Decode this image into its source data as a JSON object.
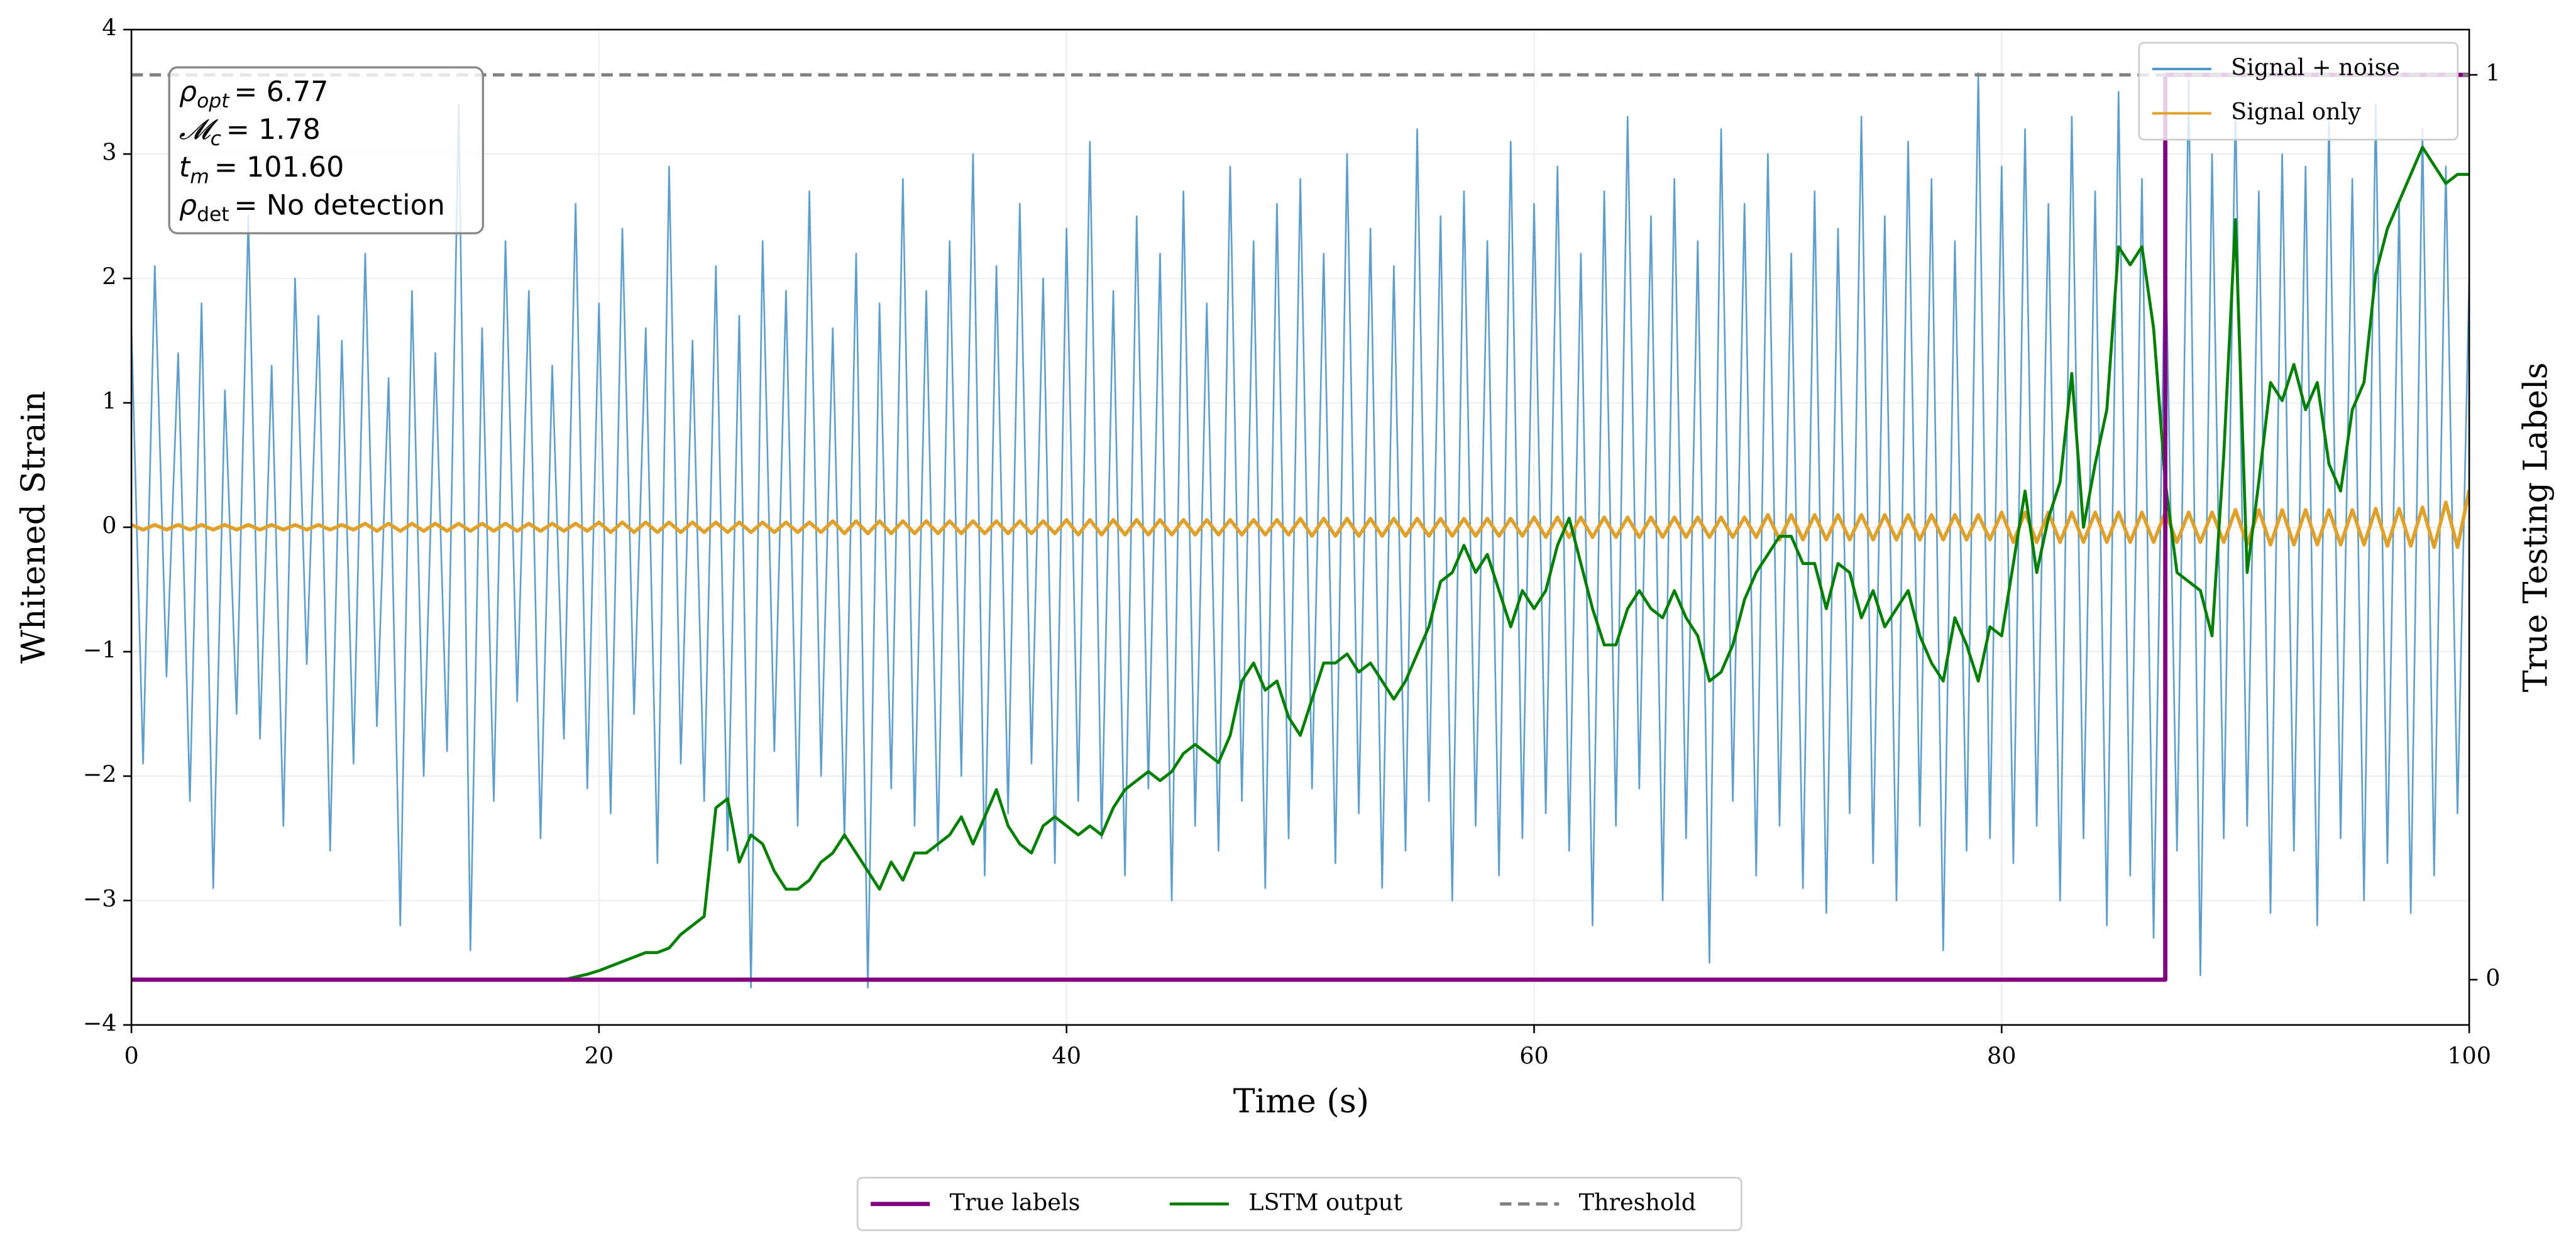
{
  "chart_data": {
    "type": "line",
    "xlabel": "Time (s)",
    "ylabel": "Whitened Strain",
    "y2label": "True Testing Labels",
    "xlim": [
      0,
      100
    ],
    "xticks": [
      0,
      20,
      40,
      60,
      80,
      100
    ],
    "ylim": [
      -4,
      4
    ],
    "yticks": [
      {
        "value": -4,
        "label": "−4"
      },
      {
        "value": -3,
        "label": "−3"
      },
      {
        "value": -2,
        "label": "−2"
      },
      {
        "value": -1,
        "label": "−1"
      },
      0,
      1,
      2,
      3,
      4
    ],
    "y2lim": [
      -0.05,
      1.05
    ],
    "y2ticks": [
      0,
      1
    ],
    "grid": true,
    "annotations": [
      {
        "symbol": "ρ",
        "subscript": "opt",
        "text": "= 6.77"
      },
      {
        "symbol": "𝓜",
        "subscript": "c",
        "text": "= 1.78"
      },
      {
        "symbol": "t",
        "subscript": "m",
        "text": "= 101.60"
      },
      {
        "symbol": "ρ",
        "subscript": "det",
        "text": "= No detection"
      }
    ],
    "threshold": {
      "name": "Threshold",
      "value": 1,
      "axis": "y2",
      "color": "#808080",
      "legend_loc": "lower center"
    },
    "x": [
      0,
      0.5,
      1,
      1.5,
      2,
      2.5,
      3,
      3.5,
      4,
      4.5,
      5,
      5.5,
      6,
      6.5,
      7,
      7.5,
      8,
      8.5,
      9,
      9.5,
      10,
      10.5,
      11,
      11.5,
      12,
      12.5,
      13,
      13.5,
      14,
      14.5,
      15,
      15.5,
      16,
      16.5,
      17,
      17.5,
      18,
      18.5,
      19,
      19.5,
      20,
      20.5,
      21,
      21.5,
      22,
      22.5,
      23,
      23.5,
      24,
      24.5,
      25,
      25.5,
      26,
      26.5,
      27,
      27.5,
      28,
      28.5,
      29,
      29.5,
      30,
      30.5,
      31,
      31.5,
      32,
      32.5,
      33,
      33.5,
      34,
      34.5,
      35,
      35.5,
      36,
      36.5,
      37,
      37.5,
      38,
      38.5,
      39,
      39.5,
      40,
      40.5,
      41,
      41.5,
      42,
      42.5,
      43,
      43.5,
      44,
      44.5,
      45,
      45.5,
      46,
      46.5,
      47,
      47.5,
      48,
      48.5,
      49,
      49.5,
      50,
      50.5,
      51,
      51.5,
      52,
      52.5,
      53,
      53.5,
      54,
      54.5,
      55,
      55.5,
      56,
      56.5,
      57,
      57.5,
      58,
      58.5,
      59,
      59.5,
      60,
      60.5,
      61,
      61.5,
      62,
      62.5,
      63,
      63.5,
      64,
      64.5,
      65,
      65.5,
      66,
      66.5,
      67,
      67.5,
      68,
      68.5,
      69,
      69.5,
      70,
      70.5,
      71,
      71.5,
      72,
      72.5,
      73,
      73.5,
      74,
      74.5,
      75,
      75.5,
      76,
      76.5,
      77,
      77.5,
      78,
      78.5,
      79,
      79.5,
      80,
      80.5,
      81,
      81.5,
      82,
      82.5,
      83,
      83.5,
      84,
      84.5,
      85,
      85.5,
      86,
      86.5,
      87,
      87.5,
      88,
      88.5,
      89,
      89.5,
      90,
      90.5,
      91,
      91.5,
      92,
      92.5,
      93,
      93.5,
      94,
      94.5,
      95,
      95.5,
      96,
      96.5,
      97,
      97.5,
      98,
      98.5,
      99,
      99.5,
      100
    ],
    "series": [
      {
        "name": "Signal + noise",
        "color": "#4d94c6",
        "axis": "y",
        "legend_loc": "upper right",
        "values": [
          1.6,
          -1.9,
          2.1,
          -1.2,
          1.4,
          -2.2,
          1.8,
          -2.9,
          1.1,
          -1.5,
          2.5,
          -1.7,
          1.3,
          -2.4,
          2.0,
          -1.1,
          1.7,
          -2.6,
          1.5,
          -1.9,
          2.2,
          -1.6,
          1.2,
          -3.2,
          1.9,
          -2.0,
          1.4,
          -1.8,
          3.4,
          -3.4,
          1.6,
          -2.2,
          2.3,
          -1.4,
          1.9,
          -2.5,
          1.3,
          -1.7,
          2.6,
          -2.1,
          1.8,
          -2.3,
          2.4,
          -1.5,
          1.6,
          -2.7,
          2.9,
          -1.9,
          1.5,
          -2.2,
          2.1,
          -2.6,
          1.7,
          -3.7,
          2.3,
          -1.8,
          1.9,
          -2.4,
          2.7,
          -2.0,
          1.6,
          -2.5,
          2.2,
          -3.7,
          1.8,
          -2.1,
          2.8,
          -2.4,
          1.9,
          -2.6,
          2.3,
          -2.0,
          3.0,
          -2.8,
          2.1,
          -2.3,
          2.6,
          -1.9,
          2.0,
          -2.7,
          2.4,
          -2.2,
          3.1,
          -2.5,
          1.9,
          -2.8,
          2.5,
          -2.1,
          2.2,
          -3.0,
          2.7,
          -2.4,
          1.8,
          -2.6,
          2.9,
          -2.2,
          2.3,
          -2.9,
          2.6,
          -2.5,
          2.8,
          -2.1,
          2.2,
          -2.7,
          3.0,
          -2.3,
          2.4,
          -2.9,
          2.1,
          -2.6,
          3.2,
          -2.2,
          2.5,
          -3.0,
          2.7,
          -2.4,
          2.3,
          -2.8,
          3.1,
          -2.5,
          2.6,
          -2.3,
          2.9,
          -2.6,
          2.2,
          -3.2,
          2.7,
          -2.4,
          3.3,
          -2.1,
          2.5,
          -3.0,
          2.8,
          -2.5,
          2.3,
          -3.5,
          3.2,
          -2.2,
          2.6,
          -2.8,
          3.0,
          -2.4,
          2.2,
          -2.9,
          2.7,
          -3.1,
          2.4,
          -2.3,
          3.3,
          -2.7,
          2.5,
          -3.0,
          3.1,
          -2.4,
          2.8,
          -3.4,
          2.3,
          -2.6,
          3.65,
          -2.5,
          2.9,
          -2.7,
          3.2,
          -2.4,
          2.6,
          -3.0,
          3.3,
          -2.5,
          2.7,
          -3.2,
          3.5,
          -2.8,
          2.8,
          -3.3,
          2.4,
          -2.6,
          3.6,
          -3.6,
          3.0,
          -2.5,
          3.4,
          -2.4,
          2.7,
          -3.1,
          3.0,
          -2.6,
          2.9,
          -3.2,
          3.3,
          -2.5,
          2.8,
          -3.0,
          3.4,
          -2.7,
          2.6,
          -3.1,
          3.2,
          -2.8,
          2.9,
          -2.3,
          2.0
        ]
      },
      {
        "name": "Signal only",
        "color": "#e0a12a",
        "axis": "y",
        "legend_loc": "upper right",
        "values": [
          0.02,
          -0.02,
          0.02,
          -0.02,
          0.02,
          -0.02,
          0.02,
          -0.02,
          0.02,
          -0.02,
          0.02,
          -0.02,
          0.02,
          -0.02,
          0.02,
          -0.02,
          0.02,
          -0.02,
          0.02,
          -0.02,
          0.03,
          -0.03,
          0.03,
          -0.03,
          0.03,
          -0.03,
          0.03,
          -0.03,
          0.03,
          -0.03,
          0.03,
          -0.03,
          0.03,
          -0.03,
          0.03,
          -0.03,
          0.03,
          -0.03,
          0.03,
          -0.03,
          0.04,
          -0.04,
          0.04,
          -0.04,
          0.04,
          -0.04,
          0.04,
          -0.04,
          0.04,
          -0.04,
          0.04,
          -0.04,
          0.04,
          -0.04,
          0.04,
          -0.04,
          0.04,
          -0.04,
          0.04,
          -0.04,
          0.05,
          -0.05,
          0.05,
          -0.05,
          0.05,
          -0.05,
          0.05,
          -0.05,
          0.05,
          -0.05,
          0.05,
          -0.05,
          0.05,
          -0.05,
          0.05,
          -0.05,
          0.05,
          -0.05,
          0.05,
          -0.05,
          0.06,
          -0.06,
          0.06,
          -0.06,
          0.06,
          -0.06,
          0.06,
          -0.06,
          0.06,
          -0.06,
          0.06,
          -0.06,
          0.06,
          -0.06,
          0.06,
          -0.06,
          0.06,
          -0.06,
          0.06,
          -0.06,
          0.07,
          -0.07,
          0.07,
          -0.07,
          0.07,
          -0.07,
          0.07,
          -0.07,
          0.07,
          -0.07,
          0.07,
          -0.07,
          0.07,
          -0.07,
          0.07,
          -0.07,
          0.07,
          -0.07,
          0.07,
          -0.07,
          0.08,
          -0.08,
          0.08,
          -0.08,
          0.08,
          -0.08,
          0.08,
          -0.08,
          0.08,
          -0.08,
          0.08,
          -0.08,
          0.08,
          -0.08,
          0.08,
          -0.08,
          0.08,
          -0.08,
          0.08,
          -0.08,
          0.1,
          -0.1,
          0.1,
          -0.1,
          0.1,
          -0.1,
          0.1,
          -0.1,
          0.1,
          -0.1,
          0.1,
          -0.1,
          0.1,
          -0.1,
          0.1,
          -0.1,
          0.1,
          -0.1,
          0.1,
          -0.1,
          0.12,
          -0.12,
          0.12,
          -0.12,
          0.12,
          -0.12,
          0.12,
          -0.12,
          0.12,
          -0.12,
          0.12,
          -0.12,
          0.12,
          -0.12,
          0.12,
          -0.12,
          0.12,
          -0.12,
          0.12,
          -0.12,
          0.14,
          -0.14,
          0.14,
          -0.14,
          0.14,
          -0.14,
          0.14,
          -0.14,
          0.14,
          -0.14,
          0.14,
          -0.14,
          0.15,
          -0.15,
          0.15,
          -0.15,
          0.16,
          -0.16,
          0.2,
          -0.16,
          0.3
        ]
      },
      {
        "name": "LSTM output",
        "color": "#007f00",
        "axis": "y2",
        "legend_loc": "lower center",
        "values": [
          0,
          0,
          0,
          0,
          0,
          0,
          0,
          0,
          0,
          0,
          0,
          0,
          0,
          0,
          0,
          0,
          0,
          0,
          0,
          0,
          0,
          0,
          0,
          0,
          0,
          0,
          0,
          0,
          0,
          0,
          0,
          0,
          0,
          0,
          0,
          0,
          0,
          0,
          0.003,
          0.006,
          0.01,
          0.015,
          0.02,
          0.025,
          0.03,
          0.03,
          0.035,
          0.05,
          0.06,
          0.07,
          0.19,
          0.2,
          0.13,
          0.16,
          0.15,
          0.12,
          0.1,
          0.1,
          0.11,
          0.13,
          0.14,
          0.16,
          0.14,
          0.12,
          0.1,
          0.13,
          0.11,
          0.14,
          0.14,
          0.15,
          0.16,
          0.18,
          0.15,
          0.18,
          0.21,
          0.17,
          0.15,
          0.14,
          0.17,
          0.18,
          0.17,
          0.16,
          0.17,
          0.16,
          0.19,
          0.21,
          0.22,
          0.23,
          0.22,
          0.23,
          0.25,
          0.26,
          0.25,
          0.24,
          0.27,
          0.33,
          0.35,
          0.32,
          0.33,
          0.29,
          0.27,
          0.31,
          0.35,
          0.35,
          0.36,
          0.34,
          0.35,
          0.33,
          0.31,
          0.33,
          0.36,
          0.39,
          0.44,
          0.45,
          0.48,
          0.45,
          0.47,
          0.43,
          0.39,
          0.43,
          0.41,
          0.43,
          0.48,
          0.51,
          0.46,
          0.41,
          0.37,
          0.37,
          0.41,
          0.43,
          0.41,
          0.4,
          0.43,
          0.4,
          0.38,
          0.33,
          0.34,
          0.37,
          0.42,
          0.45,
          0.47,
          0.49,
          0.49,
          0.46,
          0.46,
          0.41,
          0.46,
          0.45,
          0.4,
          0.43,
          0.39,
          0.41,
          0.43,
          0.38,
          0.35,
          0.33,
          0.4,
          0.37,
          0.33,
          0.39,
          0.38,
          0.46,
          0.54,
          0.45,
          0.51,
          0.55,
          0.67,
          0.5,
          0.57,
          0.63,
          0.81,
          0.79,
          0.81,
          0.72,
          0.55,
          0.45,
          0.44,
          0.43,
          0.38,
          0.58,
          0.84,
          0.45,
          0.55,
          0.66,
          0.64,
          0.68,
          0.63,
          0.66,
          0.57,
          0.54,
          0.63,
          0.66,
          0.78,
          0.83,
          0.86,
          0.89,
          0.92,
          0.9,
          0.88,
          0.89,
          0.89
        ]
      },
      {
        "name": "True labels",
        "color": "#800080",
        "axis": "y2",
        "legend_loc": "lower center",
        "x": [
          0,
          87,
          87,
          100
        ],
        "values": [
          0,
          0,
          1,
          1
        ]
      }
    ]
  }
}
